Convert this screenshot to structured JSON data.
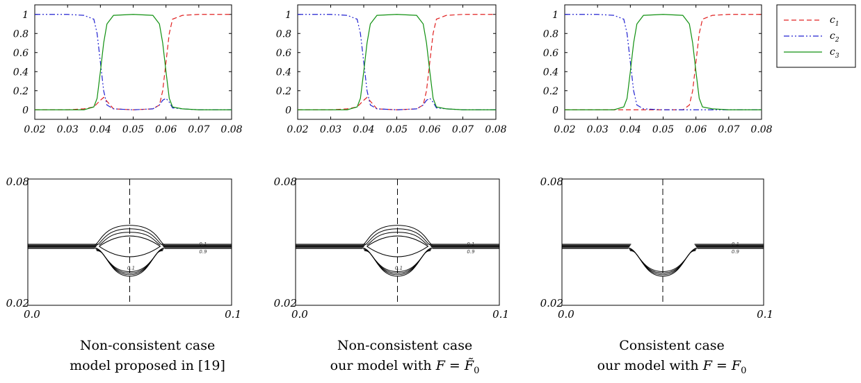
{
  "legend": {
    "placement": "right",
    "entries": [
      {
        "label": "c",
        "sub": "1",
        "color": "#e02020",
        "dash": "7,4"
      },
      {
        "label": "c",
        "sub": "2",
        "color": "#2020d0",
        "dash": "8,3,2,3,2,3"
      },
      {
        "label": "c",
        "sub": "3",
        "color": "#109010",
        "dash": ""
      }
    ]
  },
  "contour_labels": {
    "low": "0.1",
    "high": "0.9"
  },
  "captions": [
    {
      "line1": "Non-consistent case",
      "line2": "model proposed in [19]"
    },
    {
      "line1": "Non-consistent case",
      "line2_text": "our model with",
      "line2_math": "F = F̃",
      "line2_sub": "0"
    },
    {
      "line1": "Consistent case",
      "line2_text": "our model with",
      "line2_math": "F = F",
      "line2_sub": "0"
    }
  ],
  "chart_data": [
    {
      "type": "line",
      "panel": "top-left",
      "xlim": [
        0.02,
        0.08
      ],
      "ylim": [
        -0.1,
        1.1
      ],
      "xticks": [
        "0.02",
        "0.03",
        "0.04",
        "0.05",
        "0.06",
        "0.07",
        "0.08"
      ],
      "yticks": [
        "0",
        "0.2",
        "0.4",
        "0.6",
        "0.8",
        "1"
      ],
      "grid": false,
      "series": [
        {
          "name": "c1",
          "x": [
            0.02,
            0.03,
            0.035,
            0.038,
            0.04,
            0.041,
            0.042,
            0.044,
            0.05,
            0.056,
            0.058,
            0.059,
            0.06,
            0.061,
            0.062,
            0.065,
            0.07,
            0.08
          ],
          "y": [
            0,
            0,
            0.01,
            0.03,
            0.1,
            0.13,
            0.09,
            0.01,
            0,
            0.01,
            0.05,
            0.2,
            0.5,
            0.8,
            0.95,
            0.99,
            1,
            1
          ]
        },
        {
          "name": "c2",
          "x": [
            0.02,
            0.03,
            0.035,
            0.038,
            0.039,
            0.04,
            0.041,
            0.042,
            0.044,
            0.05,
            0.056,
            0.058,
            0.059,
            0.06,
            0.061,
            0.062,
            0.065,
            0.07,
            0.08
          ],
          "y": [
            1,
            1,
            0.99,
            0.95,
            0.8,
            0.5,
            0.2,
            0.05,
            0.01,
            0,
            0.01,
            0.05,
            0.1,
            0.12,
            0.08,
            0.02,
            0.01,
            0,
            0
          ]
        },
        {
          "name": "c3",
          "x": [
            0.02,
            0.03,
            0.035,
            0.038,
            0.039,
            0.04,
            0.041,
            0.042,
            0.044,
            0.05,
            0.056,
            0.058,
            0.059,
            0.06,
            0.061,
            0.062,
            0.065,
            0.07,
            0.08
          ],
          "y": [
            0,
            0,
            0,
            0.03,
            0.12,
            0.4,
            0.7,
            0.9,
            0.99,
            1,
            0.99,
            0.9,
            0.7,
            0.4,
            0.12,
            0.03,
            0.01,
            0,
            0
          ]
        }
      ]
    },
    {
      "type": "line",
      "panel": "top-middle",
      "xlim": [
        0.02,
        0.08
      ],
      "ylim": [
        -0.1,
        1.1
      ],
      "xticks": [
        "0.02",
        "0.03",
        "0.04",
        "0.05",
        "0.06",
        "0.07",
        "0.08"
      ],
      "yticks": [
        "0",
        "0.2",
        "0.4",
        "0.6",
        "0.8",
        "1"
      ],
      "grid": false,
      "series": [
        {
          "name": "c1",
          "x": [
            0.02,
            0.03,
            0.035,
            0.038,
            0.04,
            0.041,
            0.042,
            0.044,
            0.05,
            0.056,
            0.058,
            0.059,
            0.06,
            0.061,
            0.062,
            0.065,
            0.07,
            0.08
          ],
          "y": [
            0,
            0,
            0.01,
            0.03,
            0.1,
            0.13,
            0.09,
            0.01,
            0,
            0.01,
            0.05,
            0.2,
            0.5,
            0.8,
            0.95,
            0.99,
            1,
            1
          ]
        },
        {
          "name": "c2",
          "x": [
            0.02,
            0.03,
            0.035,
            0.038,
            0.039,
            0.04,
            0.041,
            0.042,
            0.044,
            0.05,
            0.056,
            0.058,
            0.059,
            0.06,
            0.061,
            0.062,
            0.065,
            0.07,
            0.08
          ],
          "y": [
            1,
            1,
            0.99,
            0.95,
            0.8,
            0.5,
            0.2,
            0.05,
            0.01,
            0,
            0.01,
            0.05,
            0.1,
            0.12,
            0.08,
            0.02,
            0.01,
            0,
            0
          ]
        },
        {
          "name": "c3",
          "x": [
            0.02,
            0.03,
            0.035,
            0.038,
            0.039,
            0.04,
            0.041,
            0.042,
            0.044,
            0.05,
            0.056,
            0.058,
            0.059,
            0.06,
            0.061,
            0.062,
            0.065,
            0.07,
            0.08
          ],
          "y": [
            0,
            0,
            0,
            0.03,
            0.12,
            0.4,
            0.7,
            0.9,
            0.99,
            1,
            0.99,
            0.9,
            0.7,
            0.4,
            0.12,
            0.03,
            0.01,
            0,
            0
          ]
        }
      ]
    },
    {
      "type": "line",
      "panel": "top-right",
      "xlim": [
        0.02,
        0.08
      ],
      "ylim": [
        -0.1,
        1.1
      ],
      "xticks": [
        "0.02",
        "0.03",
        "0.04",
        "0.05",
        "0.06",
        "0.07",
        "0.08"
      ],
      "yticks": [
        "0",
        "0.2",
        "0.4",
        "0.6",
        "0.8",
        "1"
      ],
      "grid": false,
      "series": [
        {
          "name": "c1",
          "x": [
            0.02,
            0.04,
            0.05,
            0.056,
            0.058,
            0.059,
            0.06,
            0.061,
            0.062,
            0.065,
            0.07,
            0.08
          ],
          "y": [
            0,
            0,
            0,
            0,
            0.05,
            0.2,
            0.5,
            0.8,
            0.95,
            0.99,
            1,
            1
          ]
        },
        {
          "name": "c2",
          "x": [
            0.02,
            0.03,
            0.035,
            0.038,
            0.039,
            0.04,
            0.041,
            0.042,
            0.044,
            0.05,
            0.06,
            0.08
          ],
          "y": [
            1,
            1,
            0.99,
            0.95,
            0.8,
            0.5,
            0.2,
            0.05,
            0.01,
            0,
            0,
            0
          ]
        },
        {
          "name": "c3",
          "x": [
            0.02,
            0.03,
            0.035,
            0.038,
            0.039,
            0.04,
            0.041,
            0.042,
            0.044,
            0.05,
            0.056,
            0.058,
            0.059,
            0.06,
            0.061,
            0.062,
            0.065,
            0.07,
            0.08
          ],
          "y": [
            0,
            0,
            0,
            0.03,
            0.12,
            0.4,
            0.7,
            0.9,
            0.99,
            1,
            0.99,
            0.9,
            0.7,
            0.4,
            0.12,
            0.03,
            0.01,
            0,
            0
          ]
        }
      ]
    },
    {
      "type": "contour",
      "panel": "bottom-left",
      "xlim": [
        0.0,
        0.1
      ],
      "ylim": [
        0.02,
        0.08
      ],
      "xticks": [
        "0.0",
        "0.1"
      ],
      "yticks": [
        "0.02",
        "0.08"
      ],
      "interface_y": 0.048,
      "band_half_width": 0.001,
      "lens_center_x": 0.05,
      "lens_half_width": 0.015,
      "lens_top_y": 0.058,
      "lens_bottom_y": 0.036,
      "lens_shape": "full"
    },
    {
      "type": "contour",
      "panel": "bottom-middle",
      "xlim": [
        0.0,
        0.1
      ],
      "ylim": [
        0.02,
        0.08
      ],
      "xticks": [
        "0.0",
        "0.1"
      ],
      "yticks": [
        "0.02",
        "0.08"
      ],
      "interface_y": 0.048,
      "band_half_width": 0.001,
      "lens_center_x": 0.05,
      "lens_half_width": 0.015,
      "lens_top_y": 0.058,
      "lens_bottom_y": 0.036,
      "lens_shape": "full"
    },
    {
      "type": "contour",
      "panel": "bottom-right",
      "xlim": [
        0.0,
        0.1
      ],
      "ylim": [
        0.02,
        0.08
      ],
      "xticks": [
        "0.0",
        "0.1"
      ],
      "yticks": [
        "0.02",
        "0.08"
      ],
      "interface_y": 0.048,
      "band_half_width": 0.001,
      "lens_center_x": 0.05,
      "lens_half_width": 0.015,
      "lens_top_y": 0.048,
      "lens_bottom_y": 0.036,
      "lens_shape": "bottom-only"
    }
  ]
}
